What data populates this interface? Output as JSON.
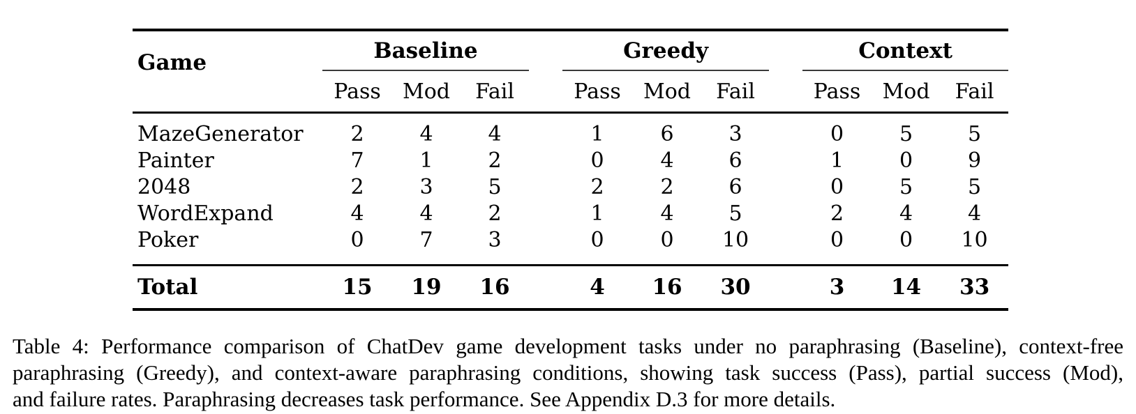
{
  "table": {
    "header": {
      "game": "Game",
      "groups": [
        {
          "label": "Baseline"
        },
        {
          "label": "Greedy"
        },
        {
          "label": "Context"
        }
      ],
      "sub": [
        "Pass",
        "Mod",
        "Fail"
      ]
    },
    "rows": [
      {
        "game": "MazeGenerator",
        "baseline": [
          "2",
          "4",
          "4"
        ],
        "greedy": [
          "1",
          "6",
          "3"
        ],
        "context": [
          "0",
          "5",
          "5"
        ]
      },
      {
        "game": "Painter",
        "baseline": [
          "7",
          "1",
          "2"
        ],
        "greedy": [
          "0",
          "4",
          "6"
        ],
        "context": [
          "1",
          "0",
          "9"
        ]
      },
      {
        "game": "2048",
        "baseline": [
          "2",
          "3",
          "5"
        ],
        "greedy": [
          "2",
          "2",
          "6"
        ],
        "context": [
          "0",
          "5",
          "5"
        ]
      },
      {
        "game": "WordExpand",
        "baseline": [
          "4",
          "4",
          "2"
        ],
        "greedy": [
          "1",
          "4",
          "5"
        ],
        "context": [
          "2",
          "4",
          "4"
        ]
      },
      {
        "game": "Poker",
        "baseline": [
          "0",
          "7",
          "3"
        ],
        "greedy": [
          "0",
          "0",
          "10"
        ],
        "context": [
          "0",
          "0",
          "10"
        ]
      }
    ],
    "total": {
      "label": "Total",
      "baseline": [
        "15",
        "19",
        "16"
      ],
      "greedy": [
        "4",
        "16",
        "30"
      ],
      "context": [
        "3",
        "14",
        "33"
      ]
    }
  },
  "caption": {
    "lines": [
      "Table 4: Performance comparison of ChatDev game development tasks under no paraphrasing (Baseline), context-free",
      "paraphrasing (Greedy), and context-aware paraphrasing conditions, showing task success (Pass), partial success (Mod),",
      "and failure rates. Paraphrasing decreases task performance. See Appendix D.3 for more details."
    ]
  },
  "colors": {
    "text": "#000000",
    "rule_heavy": "#000000",
    "rule_mid": "#000000",
    "rule_cmid": "#3a3a3a",
    "background": "#ffffff"
  }
}
